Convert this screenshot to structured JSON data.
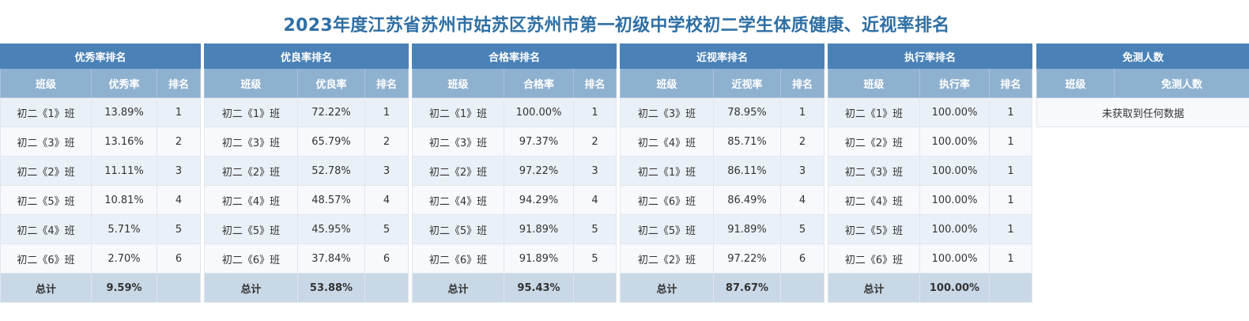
{
  "title": "2023年度江苏省苏州市姑苏区苏州市第一初级中学校初二学生体质健康、近视率排名",
  "panels": [
    {
      "title": "优秀率排名",
      "headers": [
        "班级",
        "优秀率",
        "排名"
      ],
      "rows": [
        [
          "初二《1》班",
          "13.89%",
          "1"
        ],
        [
          "初二《3》班",
          "13.16%",
          "2"
        ],
        [
          "初二《2》班",
          "11.11%",
          "3"
        ],
        [
          "初二《5》班",
          "10.81%",
          "4"
        ],
        [
          "初二《4》班",
          "5.71%",
          "5"
        ],
        [
          "初二《6》班",
          "2.70%",
          "6"
        ]
      ],
      "total": [
        "总计",
        "9.59%",
        ""
      ]
    },
    {
      "title": "优良率排名",
      "headers": [
        "班级",
        "优良率",
        "排名"
      ],
      "rows": [
        [
          "初二《1》班",
          "72.22%",
          "1"
        ],
        [
          "初二《3》班",
          "65.79%",
          "2"
        ],
        [
          "初二《2》班",
          "52.78%",
          "3"
        ],
        [
          "初二《4》班",
          "48.57%",
          "4"
        ],
        [
          "初二《5》班",
          "45.95%",
          "5"
        ],
        [
          "初二《6》班",
          "37.84%",
          "6"
        ]
      ],
      "total": [
        "总计",
        "53.88%",
        ""
      ]
    },
    {
      "title": "合格率排名",
      "headers": [
        "班级",
        "合格率",
        "排名"
      ],
      "rows": [
        [
          "初二《1》班",
          "100.00%",
          "1"
        ],
        [
          "初二《3》班",
          "97.37%",
          "2"
        ],
        [
          "初二《2》班",
          "97.22%",
          "3"
        ],
        [
          "初二《4》班",
          "94.29%",
          "4"
        ],
        [
          "初二《5》班",
          "91.89%",
          "5"
        ],
        [
          "初二《6》班",
          "91.89%",
          "5"
        ]
      ],
      "total": [
        "总计",
        "95.43%",
        ""
      ]
    },
    {
      "title": "近视率排名",
      "headers": [
        "班级",
        "近视率",
        "排名"
      ],
      "rows": [
        [
          "初二《3》班",
          "78.95%",
          "1"
        ],
        [
          "初二《4》班",
          "85.71%",
          "2"
        ],
        [
          "初二《1》班",
          "86.11%",
          "3"
        ],
        [
          "初二《6》班",
          "86.49%",
          "4"
        ],
        [
          "初二《5》班",
          "91.89%",
          "5"
        ],
        [
          "初二《2》班",
          "97.22%",
          "6"
        ]
      ],
      "total": [
        "总计",
        "87.67%",
        ""
      ]
    },
    {
      "title": "执行率排名",
      "headers": [
        "班级",
        "执行率",
        "排名"
      ],
      "rows": [
        [
          "初二《1》班",
          "100.00%",
          "1"
        ],
        [
          "初二《2》班",
          "100.00%",
          "1"
        ],
        [
          "初二《3》班",
          "100.00%",
          "1"
        ],
        [
          "初二《4》班",
          "100.00%",
          "1"
        ],
        [
          "初二《5》班",
          "100.00%",
          "1"
        ],
        [
          "初二《6》班",
          "100.00%",
          "1"
        ]
      ],
      "total": [
        "总计",
        "100.00%",
        ""
      ]
    }
  ],
  "exempt": {
    "title": "免测人数",
    "headers": [
      "班级",
      "免测人数"
    ],
    "empty_message": "未获取到任何数据"
  }
}
